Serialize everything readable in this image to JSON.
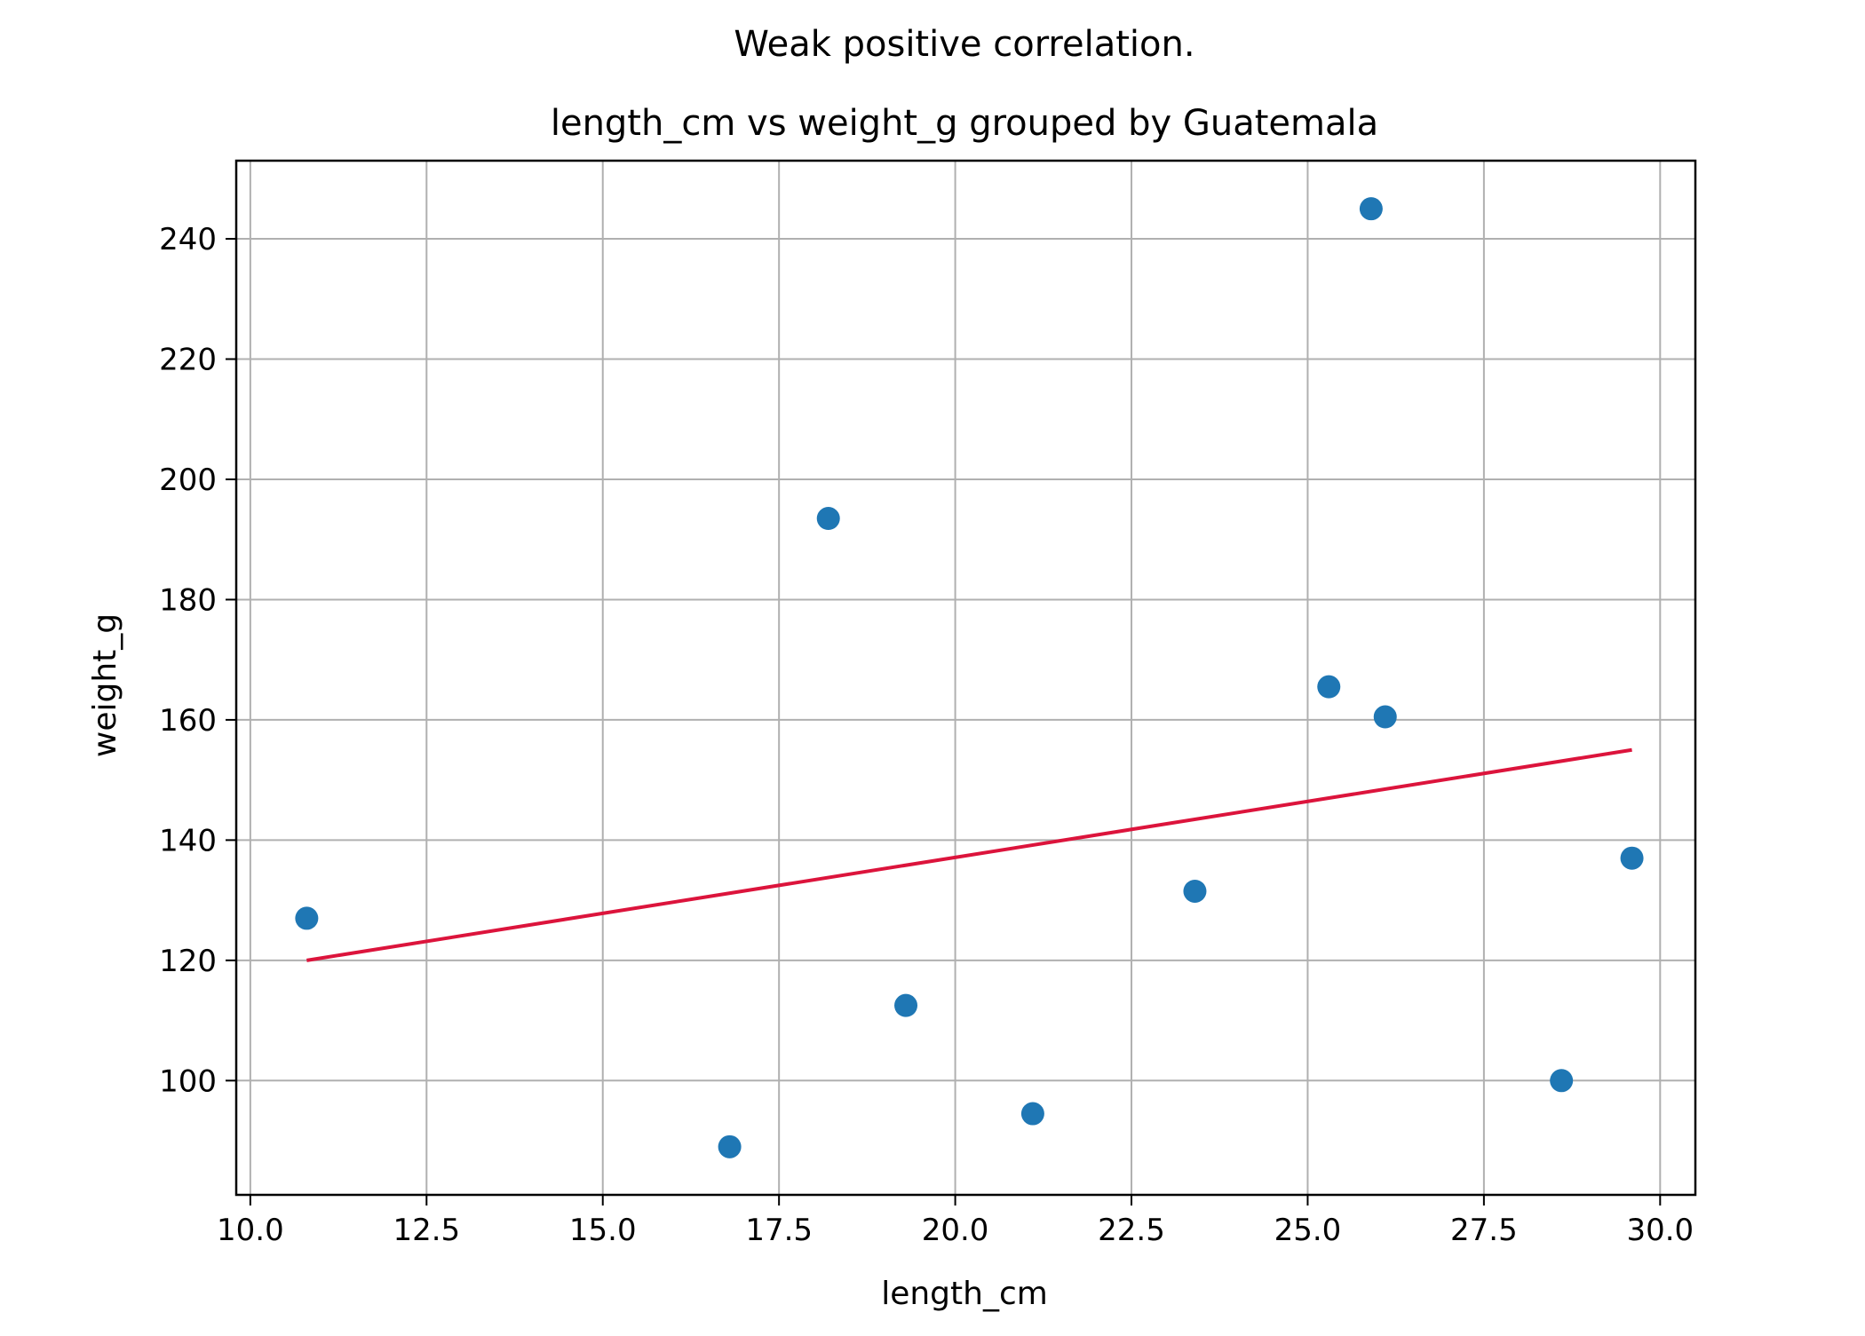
{
  "suptitle": "Weak positive correlation.",
  "chart_data": {
    "type": "scatter",
    "title": "length_cm vs weight_g grouped by Guatemala",
    "xlabel": "length_cm",
    "ylabel": "weight_g",
    "xlim": [
      9.8,
      30.5
    ],
    "ylim": [
      81,
      253
    ],
    "xticks": [
      "10.0",
      "12.5",
      "15.0",
      "17.5",
      "20.0",
      "22.5",
      "25.0",
      "27.5",
      "30.0"
    ],
    "yticks": [
      "100",
      "120",
      "140",
      "160",
      "180",
      "200",
      "220",
      "240"
    ],
    "grid": true,
    "series": [
      {
        "kind": "points",
        "color": "#1f77b4",
        "points": [
          {
            "x": 10.8,
            "y": 127
          },
          {
            "x": 16.8,
            "y": 89
          },
          {
            "x": 18.2,
            "y": 193.5
          },
          {
            "x": 19.3,
            "y": 112.5
          },
          {
            "x": 21.1,
            "y": 94.5
          },
          {
            "x": 23.4,
            "y": 131.5
          },
          {
            "x": 25.3,
            "y": 165.5
          },
          {
            "x": 25.9,
            "y": 245
          },
          {
            "x": 26.1,
            "y": 160.5
          },
          {
            "x": 28.6,
            "y": 100
          },
          {
            "x": 29.6,
            "y": 137
          }
        ]
      },
      {
        "kind": "trend-line",
        "color": "#dc143c",
        "points": [
          {
            "x": 10.8,
            "y": 120
          },
          {
            "x": 29.6,
            "y": 155
          }
        ]
      }
    ]
  }
}
